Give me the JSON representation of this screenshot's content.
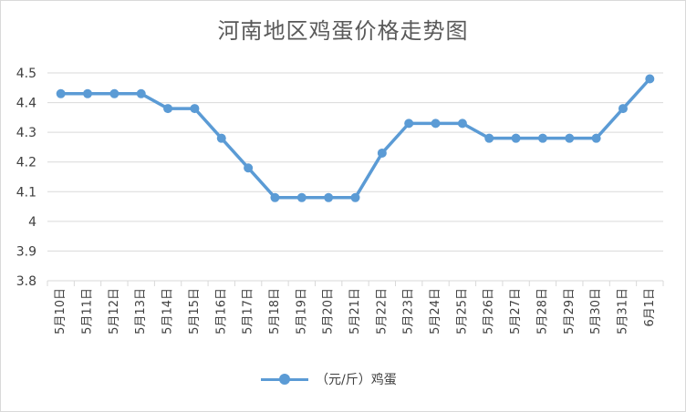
{
  "chart_data": {
    "type": "line",
    "title": "河南地区鸡蛋价格走势图",
    "categories": [
      "5月10日",
      "5月11日",
      "5月12日",
      "5月13日",
      "5月14日",
      "5月15日",
      "5月16日",
      "5月17日",
      "5月18日",
      "5月19日",
      "5月20日",
      "5月21日",
      "5月22日",
      "5月23日",
      "5月24日",
      "5月25日",
      "5月26日",
      "5月27日",
      "5月28日",
      "5月29日",
      "5月30日",
      "5月31日",
      "6月1日"
    ],
    "series": [
      {
        "name": "（元/斤）鸡蛋",
        "values": [
          4.43,
          4.43,
          4.43,
          4.43,
          4.38,
          4.38,
          4.28,
          4.18,
          4.08,
          4.08,
          4.08,
          4.08,
          4.23,
          4.33,
          4.33,
          4.33,
          4.28,
          4.28,
          4.28,
          4.28,
          4.28,
          4.38,
          4.48
        ],
        "color": "#5b9bd5"
      }
    ],
    "ylim": [
      3.8,
      4.5
    ],
    "yticks": [
      "3.8",
      "3.9",
      "4",
      "4.1",
      "4.2",
      "4.3",
      "4.4",
      "4.5"
    ],
    "grid": true,
    "legend_position": "bottom",
    "xlabel": "",
    "ylabel": ""
  }
}
